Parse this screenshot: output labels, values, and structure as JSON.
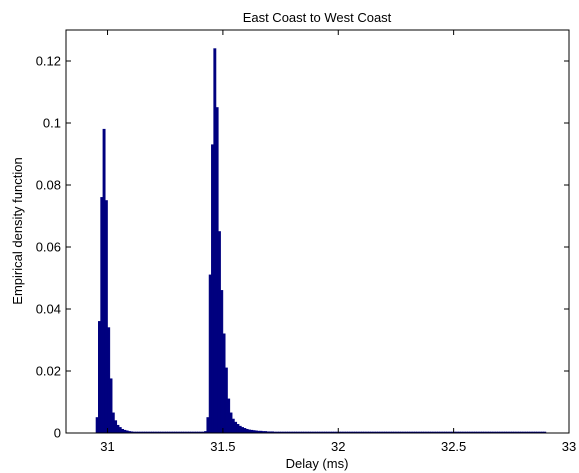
{
  "chart_data": {
    "type": "bar",
    "title": "East Coast to West Coast",
    "xlabel": "Delay (ms)",
    "ylabel": "Empirical density function",
    "xlim": [
      30.82,
      33.0
    ],
    "ylim": [
      0,
      0.13
    ],
    "xticks": [
      {
        "value": 31,
        "label": "31"
      },
      {
        "value": 31.5,
        "label": "31.5"
      },
      {
        "value": 32,
        "label": "32"
      },
      {
        "value": 32.5,
        "label": "32.5"
      },
      {
        "value": 33,
        "label": "33"
      }
    ],
    "yticks": [
      {
        "value": 0,
        "label": "0"
      },
      {
        "value": 0.02,
        "label": "0.02"
      },
      {
        "value": 0.04,
        "label": "0.04"
      },
      {
        "value": 0.06,
        "label": "0.06"
      },
      {
        "value": 0.08,
        "label": "0.08"
      },
      {
        "value": 0.1,
        "label": "0.1"
      },
      {
        "value": 0.12,
        "label": "0.12"
      }
    ],
    "grid": false,
    "bar_color": "#00007f",
    "bin_width": 0.01,
    "x": [
      30.955,
      30.965,
      30.975,
      30.985,
      30.995,
      31.005,
      31.015,
      31.025,
      31.035,
      31.045,
      31.055,
      31.065,
      31.075,
      31.085,
      31.095,
      31.105,
      31.115,
      31.125,
      31.135,
      31.145,
      31.155,
      31.165,
      31.175,
      31.185,
      31.195,
      31.205,
      31.215,
      31.225,
      31.235,
      31.245,
      31.255,
      31.265,
      31.275,
      31.285,
      31.295,
      31.305,
      31.315,
      31.325,
      31.335,
      31.345,
      31.355,
      31.365,
      31.375,
      31.385,
      31.395,
      31.405,
      31.415,
      31.425,
      31.435,
      31.445,
      31.455,
      31.465,
      31.475,
      31.485,
      31.495,
      31.505,
      31.515,
      31.525,
      31.535,
      31.545,
      31.555,
      31.565,
      31.575,
      31.585,
      31.595,
      31.605,
      31.615,
      31.625,
      31.635,
      31.645,
      31.655,
      31.665,
      31.675,
      31.685,
      31.695,
      31.705,
      31.715,
      31.725,
      31.735,
      31.745,
      31.755,
      31.765,
      31.775,
      31.785,
      31.795,
      31.805,
      31.815,
      31.825,
      31.835,
      31.845,
      31.855,
      31.865,
      31.875,
      31.885,
      31.895,
      31.905,
      31.915,
      31.925,
      31.935,
      31.945,
      31.955,
      31.965,
      31.975,
      31.985,
      31.995,
      32.005,
      32.015,
      32.025,
      32.035,
      32.045,
      32.055,
      32.065,
      32.075,
      32.085,
      32.095,
      32.105,
      32.115,
      32.125,
      32.135,
      32.145,
      32.155,
      32.165,
      32.175,
      32.185,
      32.195,
      32.205,
      32.215,
      32.225,
      32.235,
      32.245,
      32.255,
      32.265,
      32.275,
      32.285,
      32.295,
      32.305,
      32.315,
      32.325,
      32.335,
      32.345,
      32.355,
      32.365,
      32.375,
      32.385,
      32.395,
      32.405,
      32.415,
      32.425,
      32.435,
      32.445,
      32.455,
      32.465,
      32.475,
      32.485,
      32.495,
      32.505,
      32.515,
      32.525,
      32.535,
      32.545,
      32.555,
      32.565,
      32.575,
      32.585,
      32.595,
      32.605,
      32.615,
      32.625,
      32.635,
      32.645,
      32.655,
      32.665,
      32.675,
      32.685,
      32.695,
      32.705,
      32.715,
      32.725,
      32.735,
      32.745,
      32.755,
      32.765,
      32.775,
      32.785,
      32.795,
      32.805,
      32.815,
      32.825,
      32.835,
      32.845,
      32.855,
      32.865,
      32.875,
      32.885,
      32.895
    ],
    "values": [
      0.005,
      0.036,
      0.076,
      0.098,
      0.075,
      0.034,
      0.0175,
      0.0065,
      0.004,
      0.0025,
      0.0018,
      0.0012,
      0.0009,
      0.0007,
      0.0005,
      0.0004,
      0.0003,
      0.0003,
      0.0002,
      0.0002,
      0.0002,
      0.0001,
      0.0001,
      0.0001,
      0.0001,
      0.0001,
      0.0001,
      0.0001,
      0.0001,
      0.0001,
      0.0001,
      0.0001,
      0.0001,
      0.0001,
      0.0001,
      0.0001,
      0.0001,
      0.0001,
      0.0001,
      0.0001,
      0.0001,
      0.0001,
      0.0001,
      0.0001,
      0.0001,
      0.0001,
      0.0001,
      0.0005,
      0.005,
      0.051,
      0.093,
      0.124,
      0.105,
      0.065,
      0.046,
      0.032,
      0.021,
      0.011,
      0.0065,
      0.0045,
      0.0035,
      0.0028,
      0.0022,
      0.0018,
      0.0015,
      0.0012,
      0.001,
      0.0009,
      0.0008,
      0.0007,
      0.0006,
      0.0006,
      0.0005,
      0.0005,
      0.0004,
      0.0004,
      0.0004,
      0.0003,
      0.0003,
      0.0003,
      0.0003,
      0.0003,
      0.0002,
      0.0002,
      0.0002,
      0.0002,
      0.0002,
      0.0002,
      0.0002,
      0.0002,
      0.0002,
      0.0002,
      0.0001,
      0.0001,
      0.0001,
      0.0001,
      0.0001,
      0.0001,
      0.0001,
      0.0001,
      0.0001,
      0.0001,
      0.0001,
      0.0001,
      0.0001,
      0.0001,
      0.0001,
      0.0001,
      0.0001,
      0.0001,
      0.0001,
      0.0001,
      0.0001,
      0.0001,
      0.0001,
      0.0001,
      0.0001,
      0.0001,
      0.0001,
      0.0001,
      0.0001,
      0.0001,
      0.0001,
      0.0001,
      0.0001,
      0.0001,
      0.0001,
      0.0001,
      0.0001,
      0.0001,
      0.0001,
      0.0001,
      0.0001,
      0.0001,
      0.0001,
      0.0001,
      0.0001,
      0.0001,
      0.0001,
      0.0001,
      0.0001,
      0.0001,
      0.0001,
      0.0001,
      0.0001,
      0.0001,
      0.0001,
      0.0001,
      0.0001,
      0.0001,
      0.0001,
      0.0001,
      0.0001,
      0.0001,
      0.0001,
      0.0001,
      0.0001,
      0.0001,
      0.0001,
      0.0001,
      0.0001,
      0.0001,
      0.0001,
      0.0001,
      0.0001,
      0.0001,
      0.0001,
      0.0001,
      0.0001,
      0.0001,
      0.0001,
      0.0001,
      0.0001,
      0.0001,
      0.0001,
      0.0001,
      0.0001,
      0.0001,
      0.0001,
      0.0001,
      0.0001,
      0.0001,
      0.0001,
      0.0001,
      0.0001,
      0.0001,
      0.0001,
      0.0001,
      0.0001,
      0.0001,
      0.0001,
      0.0001,
      0.0001,
      0.0001,
      0.0001
    ]
  }
}
